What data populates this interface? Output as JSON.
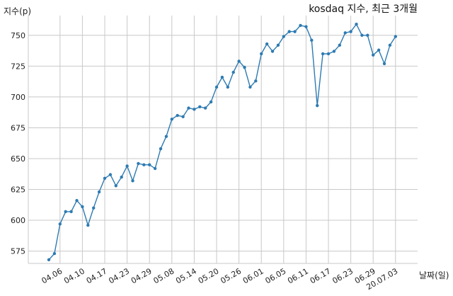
{
  "chart_data": {
    "type": "line",
    "title": "kosdaq 지수, 최근 3개월",
    "ylabel": "지수(p)",
    "xlabel": "날짜(일)",
    "ylim": [
      565,
      766
    ],
    "yticks": [
      575,
      600,
      625,
      650,
      675,
      700,
      725,
      750
    ],
    "xticks": [
      {
        "index": 2,
        "label": "04.06"
      },
      {
        "index": 6,
        "label": "04.10"
      },
      {
        "index": 10,
        "label": "04.17"
      },
      {
        "index": 14,
        "label": "04.23"
      },
      {
        "index": 18,
        "label": "04.29"
      },
      {
        "index": 22,
        "label": "05.08"
      },
      {
        "index": 26,
        "label": "05.14"
      },
      {
        "index": 30,
        "label": "05.20"
      },
      {
        "index": 34,
        "label": "05.26"
      },
      {
        "index": 38,
        "label": "06.01"
      },
      {
        "index": 42,
        "label": "06.05"
      },
      {
        "index": 46,
        "label": "06.11"
      },
      {
        "index": 50,
        "label": "06.17"
      },
      {
        "index": 54,
        "label": "06.23"
      },
      {
        "index": 58,
        "label": "06.29"
      },
      {
        "index": 62,
        "label": "20.07.03"
      }
    ],
    "grid": true,
    "color": "#2e7bb2",
    "series": [
      {
        "values": [
          568,
          573,
          597,
          607,
          607,
          616,
          611,
          596,
          610,
          623,
          634,
          637,
          628,
          635,
          644,
          632,
          646,
          645,
          645,
          642,
          658,
          668,
          682,
          685,
          684,
          691,
          690,
          692,
          691,
          696,
          708,
          716,
          708,
          720,
          729,
          724,
          708,
          713,
          735,
          743,
          737,
          742,
          749,
          753,
          753,
          758,
          757,
          746,
          693,
          735,
          735,
          737,
          742,
          752,
          753,
          759,
          750,
          750,
          734,
          738,
          727,
          742,
          749
        ]
      }
    ]
  }
}
